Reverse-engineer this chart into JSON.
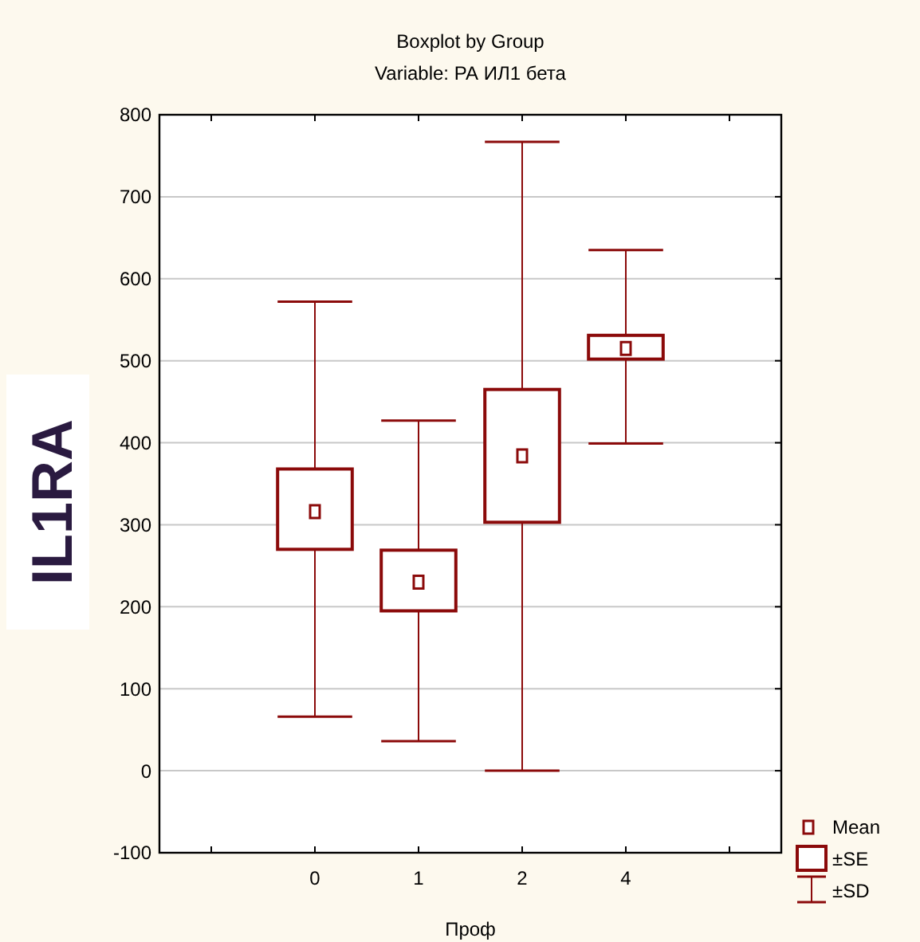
{
  "chart_data": {
    "type": "box",
    "title": "Boxplot by Group",
    "subtitle": "Variable: РА ИЛ1 бета",
    "xlabel": "Проф",
    "categories": [
      null,
      "0",
      "1",
      "2",
      "4",
      null
    ],
    "series": [
      {
        "color": "#8b0a0a",
        "boxes": [
          null,
          {
            "low": 66,
            "q1": 270,
            "q3": 368,
            "high": 572,
            "mean": 316
          },
          {
            "low": 36,
            "q1": 195,
            "q3": 269,
            "high": 427,
            "mean": 230
          },
          {
            "low": 0,
            "q1": 303,
            "q3": 465,
            "high": 767,
            "mean": 384
          },
          {
            "low": 399,
            "q1": 502,
            "q3": 531,
            "high": 635,
            "mean": 515
          },
          null
        ]
      }
    ],
    "ylim": [
      -100,
      800
    ],
    "yticks": [
      -100,
      0,
      100,
      200,
      300,
      400,
      500,
      600,
      700,
      800
    ],
    "grid": "y",
    "annotations": [
      "IL1RA",
      "Mean",
      "±SE",
      "±SD"
    ]
  }
}
